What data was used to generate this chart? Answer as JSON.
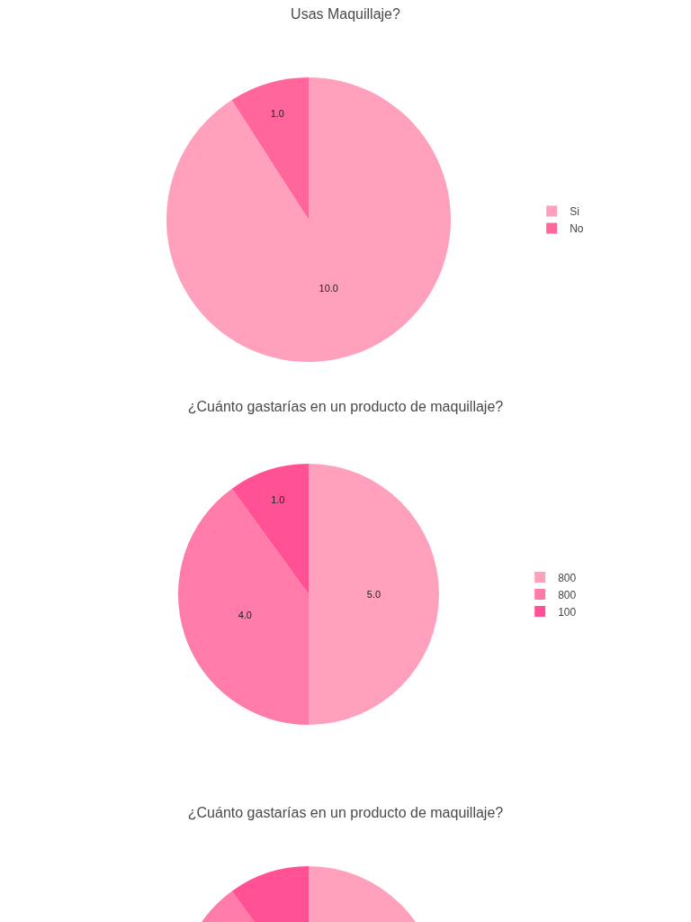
{
  "chart_data": [
    {
      "type": "pie",
      "title": "Usas Maquillaje?",
      "categories": [
        "Si",
        "No"
      ],
      "values": [
        10,
        1
      ],
      "value_labels": [
        "10.0",
        "1.0"
      ],
      "colors": [
        "#ffa1bc",
        "#ff669b"
      ],
      "legend": "right"
    },
    {
      "type": "pie",
      "title": "¿Cuánto gastarías en un producto de maquillaje?",
      "categories": [
        "800",
        "800",
        "100"
      ],
      "values": [
        5,
        4,
        1
      ],
      "value_labels": [
        "5.0",
        "4.0",
        "1.0"
      ],
      "colors": [
        "#ffa1bc",
        "#ff7ba9",
        "#ff5193"
      ],
      "legend": "right"
    },
    {
      "type": "pie",
      "title": "¿Cuánto gastarías en un producto de maquillaje?",
      "categories": [
        null,
        null,
        null
      ],
      "values": [
        50,
        40,
        10
      ],
      "colors": [
        "#ffa1bc",
        "#ff7ba9",
        "#ff5193"
      ]
    }
  ]
}
